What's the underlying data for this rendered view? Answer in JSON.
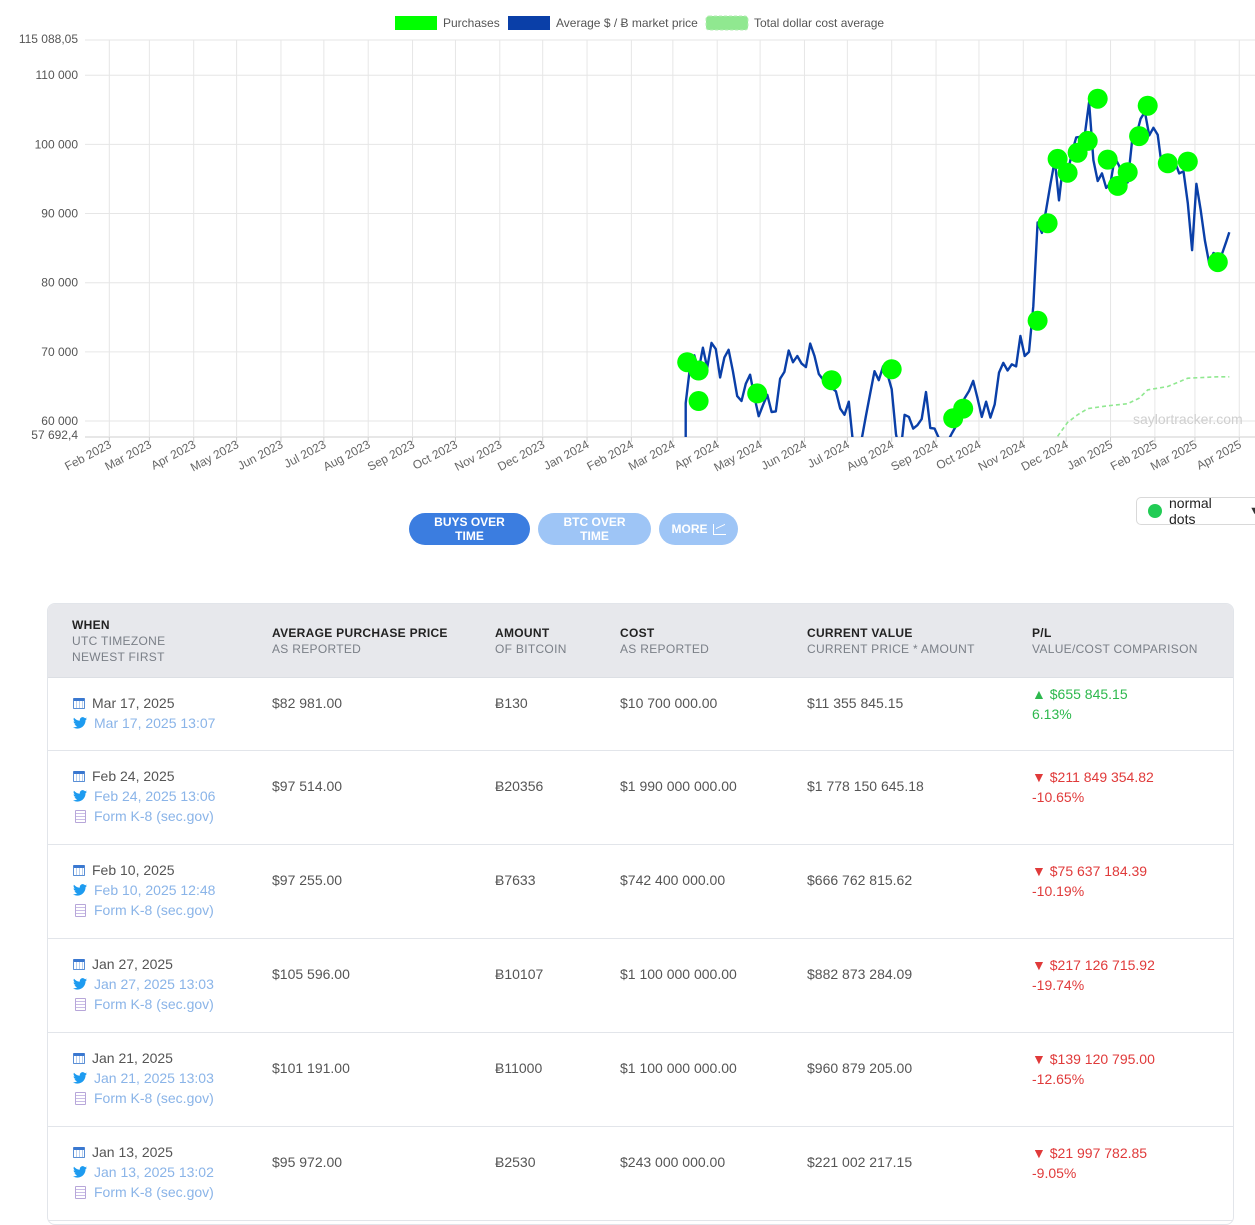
{
  "chart_data": {
    "type": "line",
    "legend": [
      {
        "name": "Purchases",
        "color": "#00ff00"
      },
      {
        "name": "Average $ / Ƀ market price",
        "color": "#0a3fa8"
      },
      {
        "name": "Total dollar cost average",
        "color": "#90e890"
      }
    ],
    "ylim": [
      57692.4,
      115088.05
    ],
    "y_top_label": "115 088,05",
    "y_bottom_label": "57 692,4",
    "y_ticks": [
      {
        "value": 110000,
        "label": "110 000"
      },
      {
        "value": 100000,
        "label": "100 000"
      },
      {
        "value": 90000,
        "label": "90 000"
      },
      {
        "value": 80000,
        "label": "80 000"
      },
      {
        "value": 70000,
        "label": "70 000"
      },
      {
        "value": 60000,
        "label": "60 000"
      }
    ],
    "x_ticks": [
      "Feb 2023",
      "Mar 2023",
      "Apr 2023",
      "May 2023",
      "Jun 2023",
      "Jul 2023",
      "Aug 2023",
      "Sep 2023",
      "Oct 2023",
      "Nov 2023",
      "Dec 2023",
      "Jan 2024",
      "Feb 2024",
      "Mar 2024",
      "Apr 2024",
      "May 2024",
      "Jun 2024",
      "Jul 2024",
      "Aug 2024",
      "Sep 2024",
      "Oct 2024",
      "Nov 2024",
      "Dec 2024",
      "Jan 2025",
      "Feb 2025",
      "Mar 2025",
      "Apr 2025"
    ],
    "price_series": [
      [
        "2024-03-10",
        62600
      ],
      [
        "2024-03-13",
        67800
      ],
      [
        "2024-03-16",
        69500
      ],
      [
        "2024-03-19",
        67300
      ],
      [
        "2024-03-22",
        70600
      ],
      [
        "2024-03-25",
        67700
      ],
      [
        "2024-03-28",
        71300
      ],
      [
        "2024-03-31",
        70400
      ],
      [
        "2024-04-03",
        66300
      ],
      [
        "2024-04-06",
        69200
      ],
      [
        "2024-04-09",
        70300
      ],
      [
        "2024-04-12",
        67200
      ],
      [
        "2024-04-15",
        63600
      ],
      [
        "2024-04-18",
        62900
      ],
      [
        "2024-04-21",
        65400
      ],
      [
        "2024-04-24",
        66700
      ],
      [
        "2024-04-27",
        63500
      ],
      [
        "2024-04-30",
        60700
      ],
      [
        "2024-05-03",
        62300
      ],
      [
        "2024-05-06",
        63800
      ],
      [
        "2024-05-09",
        61300
      ],
      [
        "2024-05-12",
        61400
      ],
      [
        "2024-05-15",
        66100
      ],
      [
        "2024-05-18",
        67100
      ],
      [
        "2024-05-21",
        70200
      ],
      [
        "2024-05-24",
        68500
      ],
      [
        "2024-05-27",
        69400
      ],
      [
        "2024-05-30",
        68300
      ],
      [
        "2024-06-02",
        67800
      ],
      [
        "2024-06-05",
        71200
      ],
      [
        "2024-06-08",
        69400
      ],
      [
        "2024-06-11",
        66800
      ],
      [
        "2024-06-14",
        66000
      ],
      [
        "2024-06-17",
        66400
      ],
      [
        "2024-06-20",
        64800
      ],
      [
        "2024-06-23",
        64300
      ],
      [
        "2024-06-26",
        61800
      ],
      [
        "2024-06-29",
        60900
      ],
      [
        "2024-07-02",
        62800
      ],
      [
        "2024-07-05",
        56700
      ],
      [
        "2024-07-08",
        56000
      ],
      [
        "2024-07-11",
        57400
      ],
      [
        "2024-07-14",
        60800
      ],
      [
        "2024-07-17",
        64000
      ],
      [
        "2024-07-20",
        67200
      ],
      [
        "2024-07-23",
        65900
      ],
      [
        "2024-07-26",
        67900
      ],
      [
        "2024-07-29",
        66800
      ],
      [
        "2024-08-01",
        64600
      ],
      [
        "2024-08-04",
        58100
      ],
      [
        "2024-08-07",
        55100
      ],
      [
        "2024-08-10",
        60900
      ],
      [
        "2024-08-13",
        60600
      ],
      [
        "2024-08-16",
        58900
      ],
      [
        "2024-08-19",
        59400
      ],
      [
        "2024-08-22",
        60300
      ],
      [
        "2024-08-25",
        64200
      ],
      [
        "2024-08-28",
        59000
      ],
      [
        "2024-08-31",
        58900
      ],
      [
        "2024-09-03",
        57500
      ],
      [
        "2024-09-06",
        53900
      ],
      [
        "2024-09-09",
        57000
      ],
      [
        "2024-09-12",
        58200
      ],
      [
        "2024-09-15",
        59300
      ],
      [
        "2024-09-18",
        61700
      ],
      [
        "2024-09-21",
        63300
      ],
      [
        "2024-09-24",
        64300
      ],
      [
        "2024-09-27",
        65800
      ],
      [
        "2024-09-30",
        63300
      ],
      [
        "2024-10-03",
        60600
      ],
      [
        "2024-10-06",
        62800
      ],
      [
        "2024-10-09",
        60500
      ],
      [
        "2024-10-12",
        62400
      ],
      [
        "2024-10-15",
        67000
      ],
      [
        "2024-10-18",
        68400
      ],
      [
        "2024-10-21",
        67300
      ],
      [
        "2024-10-24",
        68200
      ],
      [
        "2024-10-27",
        67900
      ],
      [
        "2024-10-30",
        72300
      ],
      [
        "2024-11-02",
        69400
      ],
      [
        "2024-11-05",
        70000
      ],
      [
        "2024-11-08",
        76600
      ],
      [
        "2024-11-11",
        88700
      ],
      [
        "2024-11-14",
        87200
      ],
      [
        "2024-11-17",
        90600
      ],
      [
        "2024-11-20",
        94300
      ],
      [
        "2024-11-23",
        97700
      ],
      [
        "2024-11-26",
        91900
      ],
      [
        "2024-11-29",
        97400
      ],
      [
        "2024-12-02",
        95800
      ],
      [
        "2024-12-05",
        98800
      ],
      [
        "2024-12-08",
        101000
      ],
      [
        "2024-12-11",
        101100
      ],
      [
        "2024-12-14",
        101400
      ],
      [
        "2024-12-17",
        106100
      ],
      [
        "2024-12-20",
        97700
      ],
      [
        "2024-12-23",
        94700
      ],
      [
        "2024-12-26",
        95800
      ],
      [
        "2024-12-29",
        93700
      ],
      [
        "2025-01-01",
        94400
      ],
      [
        "2025-01-04",
        98100
      ],
      [
        "2025-01-07",
        96900
      ],
      [
        "2025-01-10",
        94700
      ],
      [
        "2025-01-13",
        94500
      ],
      [
        "2025-01-16",
        100400
      ],
      [
        "2025-01-19",
        101300
      ],
      [
        "2025-01-22",
        103700
      ],
      [
        "2025-01-25",
        104700
      ],
      [
        "2025-01-28",
        101300
      ],
      [
        "2025-01-31",
        102400
      ],
      [
        "2025-02-03",
        101400
      ],
      [
        "2025-02-06",
        96600
      ],
      [
        "2025-02-09",
        96500
      ],
      [
        "2025-02-12",
        97800
      ],
      [
        "2025-02-15",
        97500
      ],
      [
        "2025-02-18",
        95800
      ],
      [
        "2025-02-21",
        96100
      ],
      [
        "2025-02-24",
        91500
      ],
      [
        "2025-02-27",
        84700
      ],
      [
        "2025-03-02",
        94300
      ],
      [
        "2025-03-05",
        90600
      ],
      [
        "2025-03-08",
        86100
      ],
      [
        "2025-03-11",
        82800
      ],
      [
        "2025-03-14",
        84300
      ],
      [
        "2025-03-17",
        84000
      ],
      [
        "2025-03-20",
        84200
      ],
      [
        "2025-03-23",
        86000
      ],
      [
        "2025-03-25",
        87300
      ]
    ],
    "purchases": [
      [
        "2024-03-11",
        68500
      ],
      [
        "2024-03-19",
        67300
      ],
      [
        "2024-03-19",
        62900
      ],
      [
        "2024-04-29",
        64000
      ],
      [
        "2024-06-20",
        65900
      ],
      [
        "2024-08-01",
        67500
      ],
      [
        "2024-09-13",
        60400
      ],
      [
        "2024-09-20",
        61800
      ],
      [
        "2024-11-11",
        74500
      ],
      [
        "2024-11-18",
        88600
      ],
      [
        "2024-11-25",
        97900
      ],
      [
        "2024-12-02",
        95900
      ],
      [
        "2024-12-09",
        98800
      ],
      [
        "2024-12-16",
        100500
      ],
      [
        "2024-12-23",
        106600
      ],
      [
        "2024-12-30",
        97800
      ],
      [
        "2025-01-06",
        94000
      ],
      [
        "2025-01-13",
        95972
      ],
      [
        "2025-01-21",
        101191
      ],
      [
        "2025-01-27",
        105596
      ],
      [
        "2025-02-10",
        97255
      ],
      [
        "2025-02-24",
        97514
      ],
      [
        "2025-03-17",
        82981
      ]
    ],
    "dca_series": [
      [
        "2024-11-25",
        57800
      ],
      [
        "2024-12-02",
        59800
      ],
      [
        "2024-12-09",
        60900
      ],
      [
        "2024-12-16",
        61800
      ],
      [
        "2024-12-30",
        62200
      ],
      [
        "2025-01-13",
        62500
      ],
      [
        "2025-01-21",
        63300
      ],
      [
        "2025-01-27",
        64500
      ],
      [
        "2025-02-10",
        65000
      ],
      [
        "2025-02-24",
        66200
      ],
      [
        "2025-03-17",
        66400
      ],
      [
        "2025-03-25",
        66400
      ]
    ],
    "watermark": "saylortracker.com"
  },
  "controls": {
    "buttons": [
      "BUYS OVER TIME",
      "BTC OVER TIME",
      "MORE"
    ],
    "dots_select": "normal dots"
  },
  "table": {
    "headers": [
      {
        "title": "WHEN",
        "sub1": "UTC TIMEZONE",
        "sub2": "NEWEST FIRST"
      },
      {
        "title": "AVERAGE PURCHASE PRICE",
        "sub": "AS REPORTED"
      },
      {
        "title": "AMOUNT",
        "sub": "OF BITCOIN"
      },
      {
        "title": "COST",
        "sub": "AS REPORTED"
      },
      {
        "title": "CURRENT VALUE",
        "sub": "CURRENT PRICE * AMOUNT"
      },
      {
        "title": "P/L",
        "sub": "VALUE/COST COMPARISON"
      }
    ],
    "rows": [
      {
        "date": "Mar 17, 2025",
        "tweet": "Mar 17, 2025 13:07",
        "form": "",
        "price": "$82 981.00",
        "amount": "Ƀ130",
        "cost": "$10 700 000.00",
        "value": "$11 355 845.15",
        "pl": "▲ $655 845.15",
        "pct": "6.13%",
        "positive": true
      },
      {
        "date": "Feb 24, 2025",
        "tweet": "Feb 24, 2025 13:06",
        "form": "Form K-8 (sec.gov)",
        "price": "$97 514.00",
        "amount": "Ƀ20356",
        "cost": "$1 990 000 000.00",
        "value": "$1 778 150 645.18",
        "pl": "▼ $211 849 354.82",
        "pct": "-10.65%",
        "positive": false
      },
      {
        "date": "Feb 10, 2025",
        "tweet": "Feb 10, 2025 12:48",
        "form": "Form K-8 (sec.gov)",
        "price": "$97 255.00",
        "amount": "Ƀ7633",
        "cost": "$742 400 000.00",
        "value": "$666 762 815.62",
        "pl": "▼ $75 637 184.39",
        "pct": "-10.19%",
        "positive": false
      },
      {
        "date": "Jan 27, 2025",
        "tweet": "Jan 27, 2025 13:03",
        "form": "Form K-8 (sec.gov)",
        "price": "$105 596.00",
        "amount": "Ƀ10107",
        "cost": "$1 100 000 000.00",
        "value": "$882 873 284.09",
        "pl": "▼ $217 126 715.92",
        "pct": "-19.74%",
        "positive": false
      },
      {
        "date": "Jan 21, 2025",
        "tweet": "Jan 21, 2025 13:03",
        "form": "Form K-8 (sec.gov)",
        "price": "$101 191.00",
        "amount": "Ƀ11000",
        "cost": "$1 100 000 000.00",
        "value": "$960 879 205.00",
        "pl": "▼ $139 120 795.00",
        "pct": "-12.65%",
        "positive": false
      },
      {
        "date": "Jan 13, 2025",
        "tweet": "Jan 13, 2025 13:02",
        "form": "Form K-8 (sec.gov)",
        "price": "$95 972.00",
        "amount": "Ƀ2530",
        "cost": "$243 000 000.00",
        "value": "$221 002 217.15",
        "pl": "▼ $21 997 782.85",
        "pct": "-9.05%",
        "positive": false
      }
    ]
  }
}
